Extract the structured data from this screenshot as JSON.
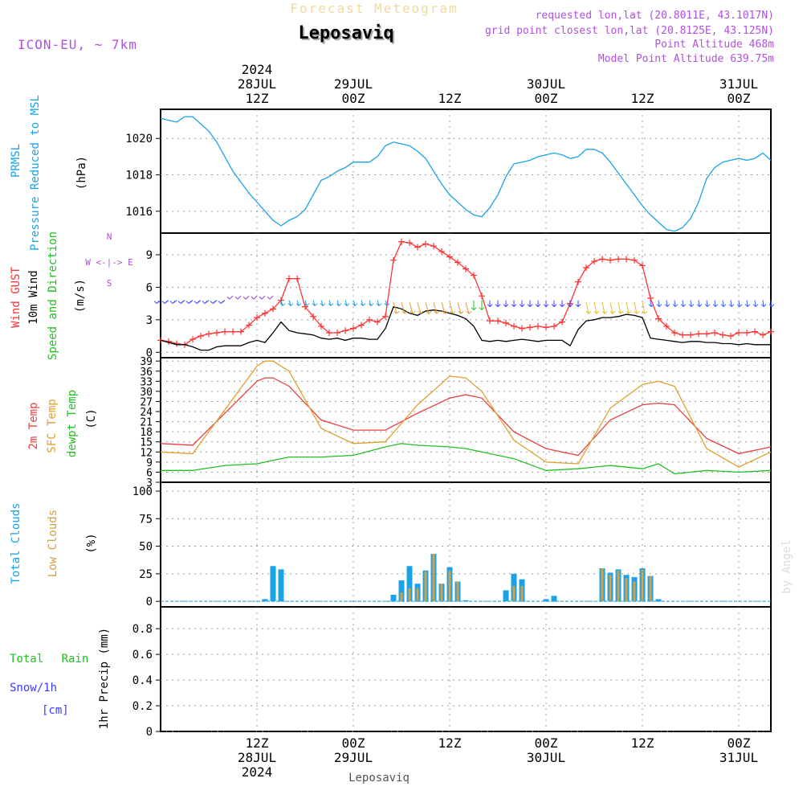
{
  "header": {
    "supertitle": "Forecast Meteogram",
    "location": "Leposaviq",
    "model": "ICON-EU, ~ 7km",
    "requested": "requested lon,lat (20.8011E, 43.1017N)",
    "gridpoint": "grid point closest lon,lat (20.8125E, 43.125N)",
    "point_alt": "Point Altitude 468m",
    "model_alt": "Model Point Altitude 639.75m",
    "footer_location": "Leposaviq",
    "watermark": "by Angel"
  },
  "colors": {
    "pressure": "#1aa3e8",
    "gust": "#ff3333",
    "wind": "#000000",
    "t2m": "#e84040",
    "sfc": "#e0a030",
    "dewpt": "#22c022",
    "total_clouds": "#1aa3e8",
    "low_clouds": "#d4a040",
    "purple": "#b050e0",
    "green": "#22c022",
    "blue": "#3b3bff"
  },
  "time_axis": {
    "top": [
      {
        "h": 12,
        "lines": [
          "2024",
          "28JUL",
          "12Z"
        ]
      },
      {
        "h": 24,
        "lines": [
          "29JUL",
          "00Z"
        ]
      },
      {
        "h": 36,
        "lines": [
          "12Z"
        ]
      },
      {
        "h": 48,
        "lines": [
          "30JUL",
          "00Z"
        ]
      },
      {
        "h": 60,
        "lines": [
          "12Z"
        ]
      },
      {
        "h": 72,
        "lines": [
          "31JUL",
          "00Z"
        ]
      }
    ],
    "bottom": [
      {
        "h": 12,
        "lines": [
          "12Z",
          "28JUL",
          "2024"
        ]
      },
      {
        "h": 24,
        "lines": [
          "00Z",
          "29JUL"
        ]
      },
      {
        "h": 36,
        "lines": [
          "12Z"
        ]
      },
      {
        "h": 48,
        "lines": [
          "00Z",
          "30JUL"
        ]
      },
      {
        "h": 60,
        "lines": [
          "12Z"
        ]
      },
      {
        "h": 72,
        "lines": [
          "00Z",
          "31JUL"
        ]
      }
    ]
  },
  "chart_data": [
    {
      "type": "line",
      "ylabel": [
        "PRMSL",
        "Pressure Reduced to MSL",
        "(hPa)"
      ],
      "ylim": [
        1014.8,
        1021.6
      ],
      "yticks": [
        1016,
        1018,
        1020
      ],
      "series": [
        {
          "name": "PRMSL",
          "x": [
            0,
            1,
            2,
            3,
            4,
            5,
            6,
            7,
            8,
            9,
            10,
            11,
            12,
            13,
            14,
            15,
            16,
            17,
            18,
            19,
            20,
            21,
            22,
            23,
            24,
            25,
            26,
            27,
            28,
            29,
            30,
            31,
            32,
            33,
            34,
            35,
            36,
            37,
            38,
            39,
            40,
            41,
            42,
            43,
            44,
            45,
            46,
            47,
            48,
            49,
            50,
            51,
            52,
            53,
            54,
            55,
            56,
            57,
            58,
            59,
            60,
            61,
            62,
            63,
            64,
            65,
            66,
            67,
            68,
            69,
            70,
            71,
            72,
            73,
            74,
            75,
            76
          ],
          "y": [
            1021.1,
            1021.0,
            1020.9,
            1021.2,
            1021.2,
            1020.8,
            1020.4,
            1019.8,
            1019.0,
            1018.2,
            1017.6,
            1017.0,
            1016.5,
            1016.0,
            1015.5,
            1015.2,
            1015.5,
            1015.7,
            1016.1,
            1016.9,
            1017.7,
            1017.9,
            1018.2,
            1018.4,
            1018.7,
            1018.7,
            1018.7,
            1019.0,
            1019.6,
            1019.8,
            1019.7,
            1019.6,
            1019.3,
            1018.9,
            1018.2,
            1017.5,
            1016.9,
            1016.5,
            1016.1,
            1015.8,
            1015.7,
            1016.2,
            1016.9,
            1017.9,
            1018.6,
            1018.7,
            1018.8,
            1019.0,
            1019.1,
            1019.2,
            1019.1,
            1018.9,
            1019.0,
            1019.4,
            1019.4,
            1019.2,
            1018.7,
            1018.1,
            1017.5,
            1016.9,
            1016.3,
            1015.8,
            1015.4,
            1015.0,
            1014.9,
            1015.1,
            1015.6,
            1016.5,
            1017.8,
            1018.4,
            1018.7,
            1018.8,
            1018.9,
            1018.8,
            1018.9,
            1019.2,
            1018.8
          ]
        }
      ]
    },
    {
      "type": "line",
      "ylabel": [
        "Wind GUST",
        "10m Wind",
        "Speed and Direction",
        "(m/s)"
      ],
      "compass": [
        "N",
        "W <-|-> E",
        "S"
      ],
      "ylim": [
        -0.5,
        11
      ],
      "yticks": [
        0,
        3,
        6,
        9
      ],
      "series": [
        {
          "name": "Wind GUST",
          "x": [
            0,
            1,
            2,
            3,
            4,
            5,
            6,
            7,
            8,
            9,
            10,
            11,
            12,
            13,
            14,
            15,
            16,
            17,
            18,
            19,
            20,
            21,
            22,
            23,
            24,
            25,
            26,
            27,
            28,
            29,
            30,
            31,
            32,
            33,
            34,
            35,
            36,
            37,
            38,
            39,
            40,
            41,
            42,
            43,
            44,
            45,
            46,
            47,
            48,
            49,
            50,
            51,
            52,
            53,
            54,
            55,
            56,
            57,
            58,
            59,
            60,
            61,
            62,
            63,
            64,
            65,
            66,
            67,
            68,
            69,
            70,
            71,
            72,
            73,
            74,
            75,
            76
          ],
          "y": [
            1.1,
            1.0,
            0.8,
            0.7,
            1.2,
            1.5,
            1.7,
            1.8,
            1.9,
            1.9,
            1.9,
            2.5,
            3.2,
            3.6,
            4.0,
            4.8,
            6.8,
            6.8,
            4.2,
            3.3,
            2.4,
            1.8,
            1.8,
            2.0,
            2.2,
            2.5,
            3.0,
            2.8,
            3.3,
            8.5,
            10.2,
            10.1,
            9.7,
            10.0,
            9.8,
            9.3,
            8.8,
            8.3,
            7.7,
            7.1,
            5.2,
            2.9,
            2.9,
            2.7,
            2.4,
            2.2,
            2.3,
            2.4,
            2.3,
            2.4,
            2.8,
            4.5,
            6.5,
            7.8,
            8.4,
            8.6,
            8.5,
            8.6,
            8.6,
            8.5,
            8.0,
            5.0,
            3.1,
            2.4,
            1.8,
            1.6,
            1.6,
            1.7,
            1.7,
            1.8,
            1.6,
            1.5,
            1.8,
            1.8,
            1.9,
            1.6,
            1.9
          ]
        },
        {
          "name": "10m Wind",
          "x": [
            0,
            1,
            2,
            3,
            4,
            5,
            6,
            7,
            8,
            9,
            10,
            11,
            12,
            13,
            14,
            15,
            16,
            17,
            18,
            19,
            20,
            21,
            22,
            23,
            24,
            25,
            26,
            27,
            28,
            29,
            30,
            31,
            32,
            33,
            34,
            35,
            36,
            37,
            38,
            39,
            40,
            41,
            42,
            43,
            44,
            45,
            46,
            47,
            48,
            49,
            50,
            51,
            52,
            53,
            54,
            55,
            56,
            57,
            58,
            59,
            60,
            61,
            62,
            63,
            64,
            65,
            66,
            67,
            68,
            69,
            70,
            71,
            72,
            73,
            74,
            75,
            76
          ],
          "y": [
            1.1,
            0.9,
            0.7,
            0.7,
            0.5,
            0.2,
            0.2,
            0.5,
            0.6,
            0.6,
            0.6,
            0.9,
            1.1,
            0.9,
            1.8,
            2.8,
            2.0,
            1.8,
            1.7,
            1.6,
            1.3,
            1.2,
            1.3,
            1.1,
            1.3,
            1.3,
            1.2,
            1.2,
            2.2,
            4.2,
            4.0,
            3.6,
            3.4,
            3.8,
            3.9,
            3.8,
            3.6,
            3.4,
            3.1,
            2.4,
            1.1,
            1.0,
            1.1,
            1.0,
            1.1,
            1.2,
            1.1,
            1.0,
            1.1,
            1.1,
            1.1,
            0.6,
            2.1,
            2.9,
            3.0,
            3.2,
            3.2,
            3.3,
            3.5,
            3.4,
            3.2,
            1.3,
            1.2,
            1.1,
            1.0,
            0.9,
            1.0,
            1.0,
            0.9,
            0.9,
            0.8,
            0.8,
            0.7,
            0.8,
            0.7,
            0.7,
            0.7
          ]
        }
      ]
    },
    {
      "type": "line",
      "ylabel": [
        "2m Temp",
        "SFC Temp",
        "dewpt Temp",
        "(C)"
      ],
      "ylim": [
        3,
        40
      ],
      "yticks": [
        3,
        6,
        9,
        12,
        15,
        18,
        21,
        24,
        27,
        30,
        33,
        36,
        39
      ],
      "series": [
        {
          "name": "2m Temp",
          "x": [
            0,
            4,
            8,
            12,
            13,
            14,
            16,
            20,
            24,
            28,
            32,
            36,
            38,
            40,
            44,
            48,
            52,
            56,
            60,
            62,
            64,
            68,
            72,
            76
          ],
          "y": [
            14.5,
            14.0,
            23.5,
            33.0,
            34.0,
            34.0,
            31.5,
            21.5,
            18.5,
            18.5,
            23.5,
            28.0,
            29.0,
            28.0,
            18.0,
            13.0,
            11.0,
            21.5,
            26.0,
            26.5,
            26.0,
            16.0,
            11.5,
            13.5
          ]
        },
        {
          "name": "SFC Temp",
          "x": [
            0,
            4,
            8,
            12,
            13,
            14,
            16,
            20,
            24,
            28,
            32,
            36,
            38,
            40,
            44,
            48,
            52,
            56,
            60,
            62,
            64,
            68,
            72,
            76
          ],
          "y": [
            12.0,
            11.5,
            24.5,
            37.5,
            39.0,
            39.0,
            36.0,
            19.0,
            14.5,
            15.0,
            26.0,
            34.5,
            34.0,
            30.0,
            15.5,
            9.0,
            8.5,
            25.0,
            32.0,
            33.0,
            31.5,
            13.0,
            7.5,
            12.0
          ]
        },
        {
          "name": "dewpt Temp",
          "x": [
            0,
            4,
            8,
            12,
            14,
            16,
            20,
            24,
            28,
            30,
            32,
            36,
            38,
            40,
            44,
            48,
            52,
            56,
            60,
            62,
            64,
            68,
            72,
            76
          ],
          "y": [
            6.5,
            6.5,
            8.0,
            8.5,
            9.5,
            10.5,
            10.5,
            11.0,
            13.5,
            14.5,
            14.0,
            13.5,
            13.0,
            12.0,
            10.0,
            6.5,
            7.0,
            8.0,
            7.0,
            8.5,
            5.5,
            6.5,
            6.0,
            6.5
          ]
        }
      ]
    },
    {
      "type": "bar",
      "ylabel": [
        "Total Clouds",
        "Low Clouds",
        "(%)"
      ],
      "ylim": [
        -5,
        108
      ],
      "yticks": [
        0,
        25,
        50,
        75,
        100
      ],
      "series": [
        {
          "name": "Total Clouds",
          "x": [
            13,
            14,
            15,
            29,
            30,
            31,
            32,
            33,
            34,
            35,
            36,
            37,
            38,
            43,
            44,
            45,
            48,
            49,
            55,
            56,
            57,
            58,
            59,
            60,
            61,
            62
          ],
          "y": [
            2,
            32,
            29,
            6,
            19,
            32,
            16,
            28,
            43,
            16,
            31,
            18,
            1,
            10,
            25,
            20,
            2,
            5,
            30,
            26,
            29,
            24,
            22,
            30,
            23,
            2
          ]
        },
        {
          "name": "Low Clouds",
          "x": [
            30,
            31,
            32,
            33,
            34,
            35,
            36,
            37,
            44,
            45,
            55,
            56,
            57,
            58,
            59,
            60,
            61
          ],
          "y": [
            8,
            12,
            12,
            27,
            43,
            16,
            28,
            18,
            14,
            14,
            30,
            24,
            28,
            21,
            18,
            29,
            23
          ]
        }
      ]
    },
    {
      "type": "line",
      "ylabel": [
        "Total Rain",
        "Snow/1h",
        "[cm]",
        "1hr Precip (mm)"
      ],
      "ylim": [
        0,
        0.97
      ],
      "yticks": [
        0,
        0.2,
        0.4,
        0.6,
        0.8
      ],
      "series": [
        {
          "name": "Total Rain",
          "x": [
            0,
            76
          ],
          "y": [
            0,
            0
          ]
        }
      ]
    }
  ]
}
